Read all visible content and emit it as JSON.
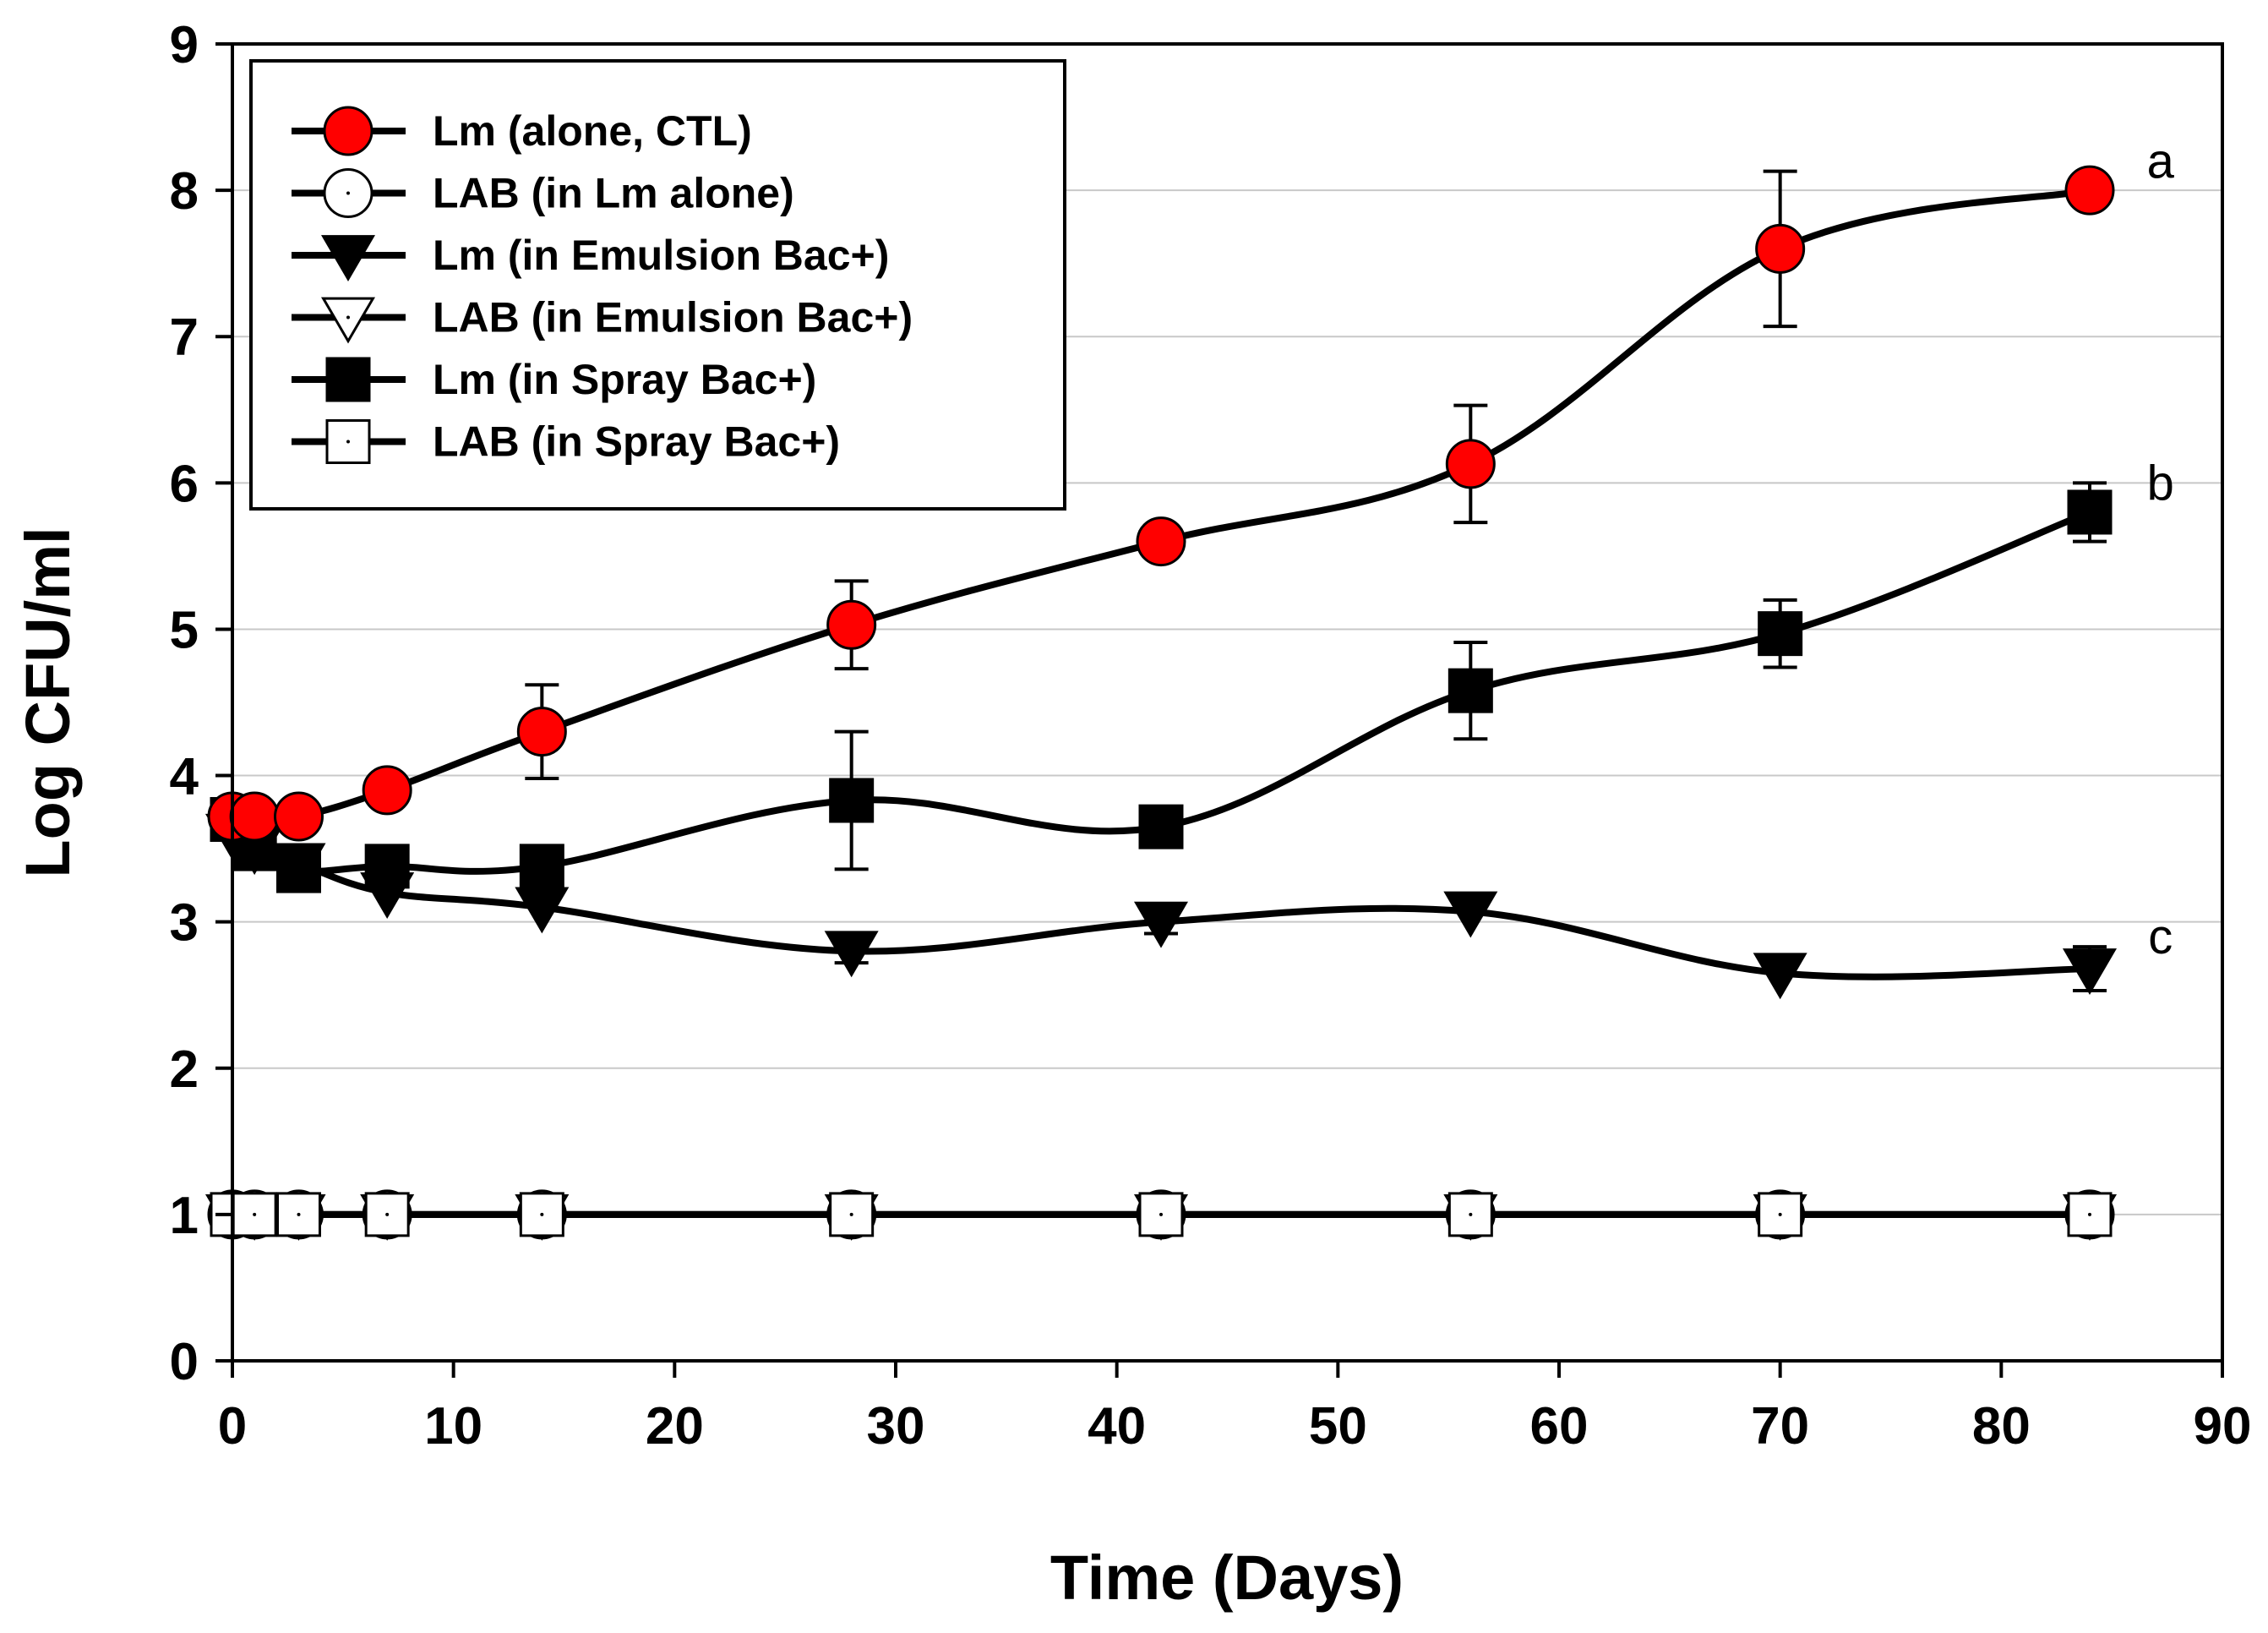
{
  "chart_data": {
    "type": "line",
    "title": "",
    "xlabel": "Time (Days)",
    "ylabel": "Log CFU/ml",
    "xlim": [
      0,
      90
    ],
    "ylim": [
      0,
      9
    ],
    "xticks": [
      "0",
      "10",
      "20",
      "30",
      "40",
      "50",
      "60",
      "70",
      "80",
      "90"
    ],
    "yticks": [
      "0",
      "1",
      "2",
      "3",
      "4",
      "5",
      "6",
      "7",
      "8",
      "9"
    ],
    "grid": "horizontal",
    "legend_position": "top-left",
    "series": [
      {
        "name": "Lm (alone, CTL)",
        "marker": "circle",
        "fill": "#ff0000",
        "x": [
          0,
          1,
          3,
          7,
          14,
          28,
          42,
          56,
          70,
          84
        ],
        "y": [
          3.72,
          3.72,
          3.72,
          3.9,
          4.3,
          5.03,
          5.6,
          6.13,
          7.6,
          8.0
        ],
        "err": [
          0.05,
          0.05,
          0.05,
          0.08,
          0.32,
          0.3,
          0.08,
          0.4,
          0.53,
          0.05
        ]
      },
      {
        "name": "LAB (in Lm alone)",
        "marker": "circle",
        "fill": "#ffffff",
        "x": [
          0,
          1,
          3,
          7,
          14,
          28,
          42,
          56,
          70,
          84
        ],
        "y": [
          1,
          1,
          1,
          1,
          1,
          1,
          1,
          1,
          1,
          1
        ],
        "err": [
          0,
          0,
          0,
          0,
          0,
          0,
          0,
          0,
          0,
          0
        ]
      },
      {
        "name": "Lm (in Emulsion Bac+)",
        "marker": "triangle-down",
        "fill": "#000000",
        "x": [
          0,
          1,
          3,
          7,
          14,
          28,
          42,
          56,
          70,
          84
        ],
        "y": [
          3.6,
          3.5,
          3.4,
          3.2,
          3.1,
          2.8,
          3.0,
          3.07,
          2.65,
          2.68
        ],
        "err": [
          0.05,
          0.05,
          0.05,
          0.05,
          0.05,
          0.08,
          0.08,
          0.05,
          0.05,
          0.15
        ]
      },
      {
        "name": "LAB (in Emulsion Bac+)",
        "marker": "triangle-down",
        "fill": "#ffffff",
        "x": [
          0,
          1,
          3,
          7,
          14,
          28,
          42,
          56,
          70,
          84
        ],
        "y": [
          1,
          1,
          1,
          1,
          1,
          1,
          1,
          1,
          1,
          1
        ],
        "err": [
          0,
          0,
          0,
          0,
          0,
          0,
          0,
          0,
          0,
          0
        ]
      },
      {
        "name": "Lm (in Spray Bac+)",
        "marker": "square",
        "fill": "#000000",
        "x": [
          0,
          1,
          3,
          7,
          14,
          28,
          42,
          56,
          70,
          84
        ],
        "y": [
          3.7,
          3.5,
          3.35,
          3.38,
          3.38,
          3.83,
          3.65,
          4.58,
          4.97,
          5.8
        ],
        "err": [
          0.05,
          0.05,
          0.05,
          0.05,
          0.05,
          0.47,
          0.05,
          0.33,
          0.23,
          0.2
        ]
      },
      {
        "name": "LAB (in Spray Bac+)",
        "marker": "square",
        "fill": "#ffffff",
        "x": [
          0,
          1,
          3,
          7,
          14,
          28,
          42,
          56,
          70,
          84
        ],
        "y": [
          1,
          1,
          1,
          1,
          1,
          1,
          1,
          1,
          1,
          1
        ],
        "err": [
          0,
          0,
          0,
          0,
          0,
          0,
          0,
          0,
          0,
          0
        ]
      }
    ],
    "annotations": [
      {
        "text": "a",
        "x": 87.2,
        "y": 8.2
      },
      {
        "text": "b",
        "x": 87.2,
        "y": 6.0
      },
      {
        "text": "c",
        "x": 87.2,
        "y": 2.9
      }
    ]
  }
}
